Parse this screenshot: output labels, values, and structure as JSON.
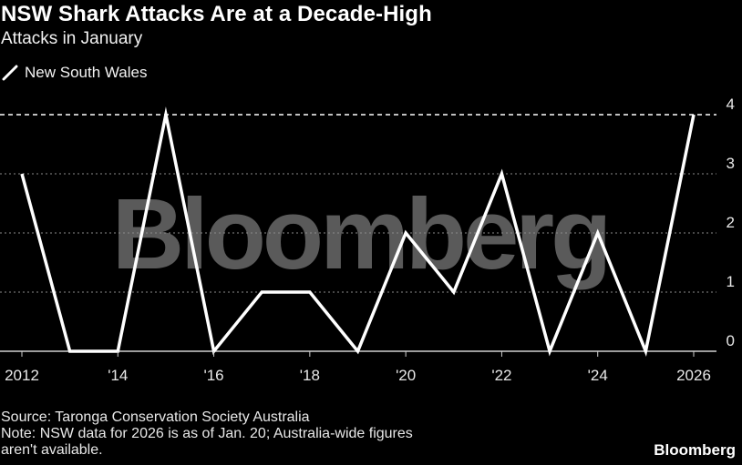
{
  "title": "NSW Shark Attacks Are at a Decade-High",
  "subtitle": "Attacks in January",
  "legend": {
    "label": "New South Wales"
  },
  "watermark": "Bloomberg",
  "footer": {
    "source": "Source: Taronga Conservation Society Australia",
    "note_line1": "Note: NSW data for 2026 is as of Jan. 20; Australia-wide figures",
    "note_line2": "aren't available."
  },
  "brand": "Bloomberg",
  "colors": {
    "background": "#000000",
    "line": "#ffffff",
    "grid": "#8a8a8a",
    "watermark": "#5a5a5a"
  },
  "chart_data": {
    "type": "line",
    "title": "NSW Shark Attacks Are at a Decade-High",
    "subtitle": "Attacks in January",
    "xlabel": "",
    "ylabel": "",
    "x": [
      2012,
      2013,
      2014,
      2015,
      2016,
      2017,
      2018,
      2019,
      2020,
      2021,
      2022,
      2023,
      2024,
      2025,
      2026
    ],
    "series": [
      {
        "name": "New South Wales",
        "values": [
          3,
          0,
          0,
          4,
          0,
          1,
          1,
          0,
          2,
          1,
          3,
          0,
          2,
          0,
          4
        ]
      }
    ],
    "xlim": [
      2012,
      2026
    ],
    "ylim": [
      0,
      4
    ],
    "x_ticks": [
      {
        "value": 2012,
        "label": "2012"
      },
      {
        "value": 2014,
        "label": "'14"
      },
      {
        "value": 2016,
        "label": "'16"
      },
      {
        "value": 2018,
        "label": "'18"
      },
      {
        "value": 2020,
        "label": "'20"
      },
      {
        "value": 2022,
        "label": "'22"
      },
      {
        "value": 2024,
        "label": "'24"
      },
      {
        "value": 2026,
        "label": "2026"
      }
    ],
    "y_ticks": [
      {
        "value": 0,
        "label": "0"
      },
      {
        "value": 1,
        "label": "1"
      },
      {
        "value": 2,
        "label": "2"
      },
      {
        "value": 3,
        "label": "3"
      },
      {
        "value": 4,
        "label": "4"
      }
    ],
    "grid": true,
    "legend_position": "top-left"
  }
}
